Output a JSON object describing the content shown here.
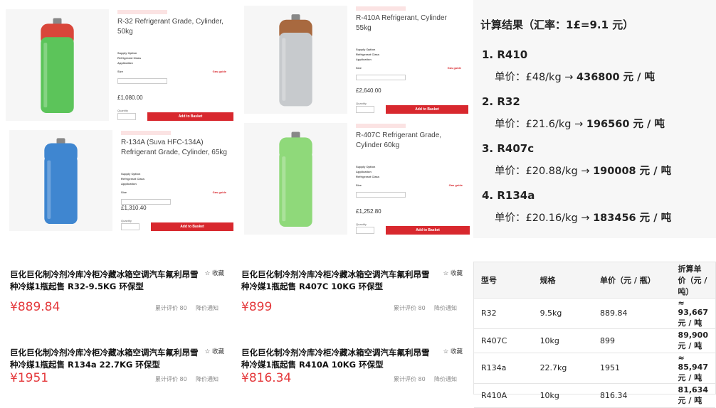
{
  "uk_products": [
    {
      "title": "R-32 Refrigerant Grade, Cylinder, 50kg",
      "specs": [
        "Supply Option",
        "Refrigerant Class",
        "Application"
      ],
      "size": "Size",
      "guide": "Gas guide",
      "price": "£1,080.00",
      "qty": "Quantity",
      "button": "Add to Basket"
    },
    {
      "title": "R-410A Refrigerant, Cylinder 55kg",
      "specs": [
        "Supply Option",
        "Refrigerant Class",
        "Application"
      ],
      "size": "Size",
      "guide": "Gas guide",
      "price": "£2,640.00",
      "qty": "Quantity",
      "button": "Add to Basket"
    },
    {
      "title": "R-134A (Suva HFC-134A) Refrigerant Grade, Cylinder, 65kg",
      "specs": [
        "Supply Option",
        "Refrigerant Class",
        "Application"
      ],
      "size": "Size",
      "guide": "Gas guide",
      "price": "£1,310.40",
      "qty": "Quantity",
      "button": "Add to Basket"
    },
    {
      "title": "R-407C Refrigerant Grade, Cylinder 60kg",
      "specs": [
        "Supply Option",
        "Application",
        "Refrigerant Class"
      ],
      "size": "Size",
      "guide": "Gas guide",
      "price": "£1,252.80",
      "qty": "Quantity",
      "button": "Add to Basket"
    }
  ],
  "results": {
    "title": "计算结果（汇率：1£=9.1 元）",
    "items": [
      {
        "name": "1. R410",
        "unit": "单价：£48/kg → ",
        "amount": "436800 元 / 吨"
      },
      {
        "name": "2. R32",
        "unit": "单价：£21.6/kg → ",
        "amount": "196560 元 / 吨"
      },
      {
        "name": "3. R407c",
        "unit": "单价：£20.88/kg → ",
        "amount": "190008 元 / 吨"
      },
      {
        "name": "4. R134a",
        "unit": "单价：£20.16/kg → ",
        "amount": "183456 元 / 吨"
      }
    ]
  },
  "cn_products": [
    {
      "title": "巨化巨化制冷剂冷库冷柜冷藏冰箱空调汽车氟利昂雪种冷媒1瓶起售 R32-9.5KG 环保型",
      "price": "¥889.84",
      "fav": "收藏",
      "reviews": "累计评价 80",
      "notify": "降价通知"
    },
    {
      "title": "巨化巨化制冷剂冷库冷柜冷藏冰箱空调汽车氟利昂雪种冷媒1瓶起售 R407C 10KG 环保型",
      "price": "¥899",
      "fav": "收藏",
      "reviews": "累计评价 80",
      "notify": "降价通知"
    },
    {
      "title": "巨化巨化制冷剂冷库冷柜冷藏冰箱空调汽车氟利昂雪种冷媒1瓶起售 R134a 22.7KG 环保型",
      "price": "¥1951",
      "fav": "收藏",
      "reviews": "累计评价 80",
      "notify": "降价通知"
    },
    {
      "title": "巨化巨化制冷剂冷库冷柜冷藏冰箱空调汽车氟利昂雪种冷媒1瓶起售 R410A 10KG 环保型",
      "price": "¥816.34",
      "fav": "收藏",
      "reviews": "累计评价 80",
      "notify": "降价通知"
    }
  ],
  "table": {
    "header": [
      "型号",
      "规格",
      "单价（元 / 瓶）",
      "折算单价（元 / 吨）"
    ],
    "rows": [
      [
        "R32",
        "9.5kg",
        "889.84",
        "≈ 93,667 元 / 吨"
      ],
      [
        "R407C",
        "10kg",
        "899",
        "89,900 元 / 吨"
      ],
      [
        "R134a",
        "22.7kg",
        "1951",
        "≈ 85,947 元 / 吨"
      ],
      [
        "R410A",
        "10kg",
        "816.34",
        "81,634 元 / 吨"
      ]
    ]
  }
}
